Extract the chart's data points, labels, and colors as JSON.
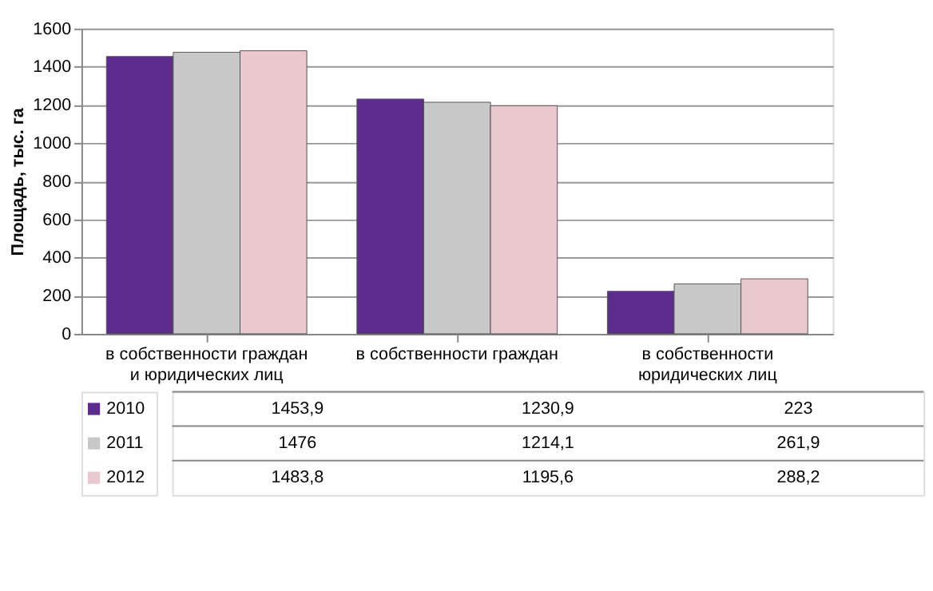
{
  "chart_data": {
    "type": "bar",
    "ylabel": "Площадь, тыс. га",
    "categories": [
      "в собственности граждан и юридических лиц",
      "в собственности граждан",
      "в собственности юридических лиц"
    ],
    "series": [
      {
        "name": "2010",
        "color": "#5b2c8c",
        "values": [
          1453.9,
          1230.9,
          223
        ],
        "value_labels": [
          "1453,9",
          "1230,9",
          "223"
        ]
      },
      {
        "name": "2011",
        "color": "#c8c8c8",
        "values": [
          1476,
          1214.1,
          261.9
        ],
        "value_labels": [
          "1476",
          "1214,1",
          "261,9"
        ]
      },
      {
        "name": "2012",
        "color": "#e9c9cd",
        "values": [
          1483.8,
          1195.6,
          288.2
        ],
        "value_labels": [
          "1483,8",
          "1195,6",
          "288,2"
        ]
      }
    ],
    "ylim": [
      0,
      1600
    ],
    "yticks": [
      0,
      200,
      400,
      600,
      800,
      1000,
      1200,
      1400,
      1600
    ],
    "grid": "y",
    "legend": "bottom left"
  }
}
